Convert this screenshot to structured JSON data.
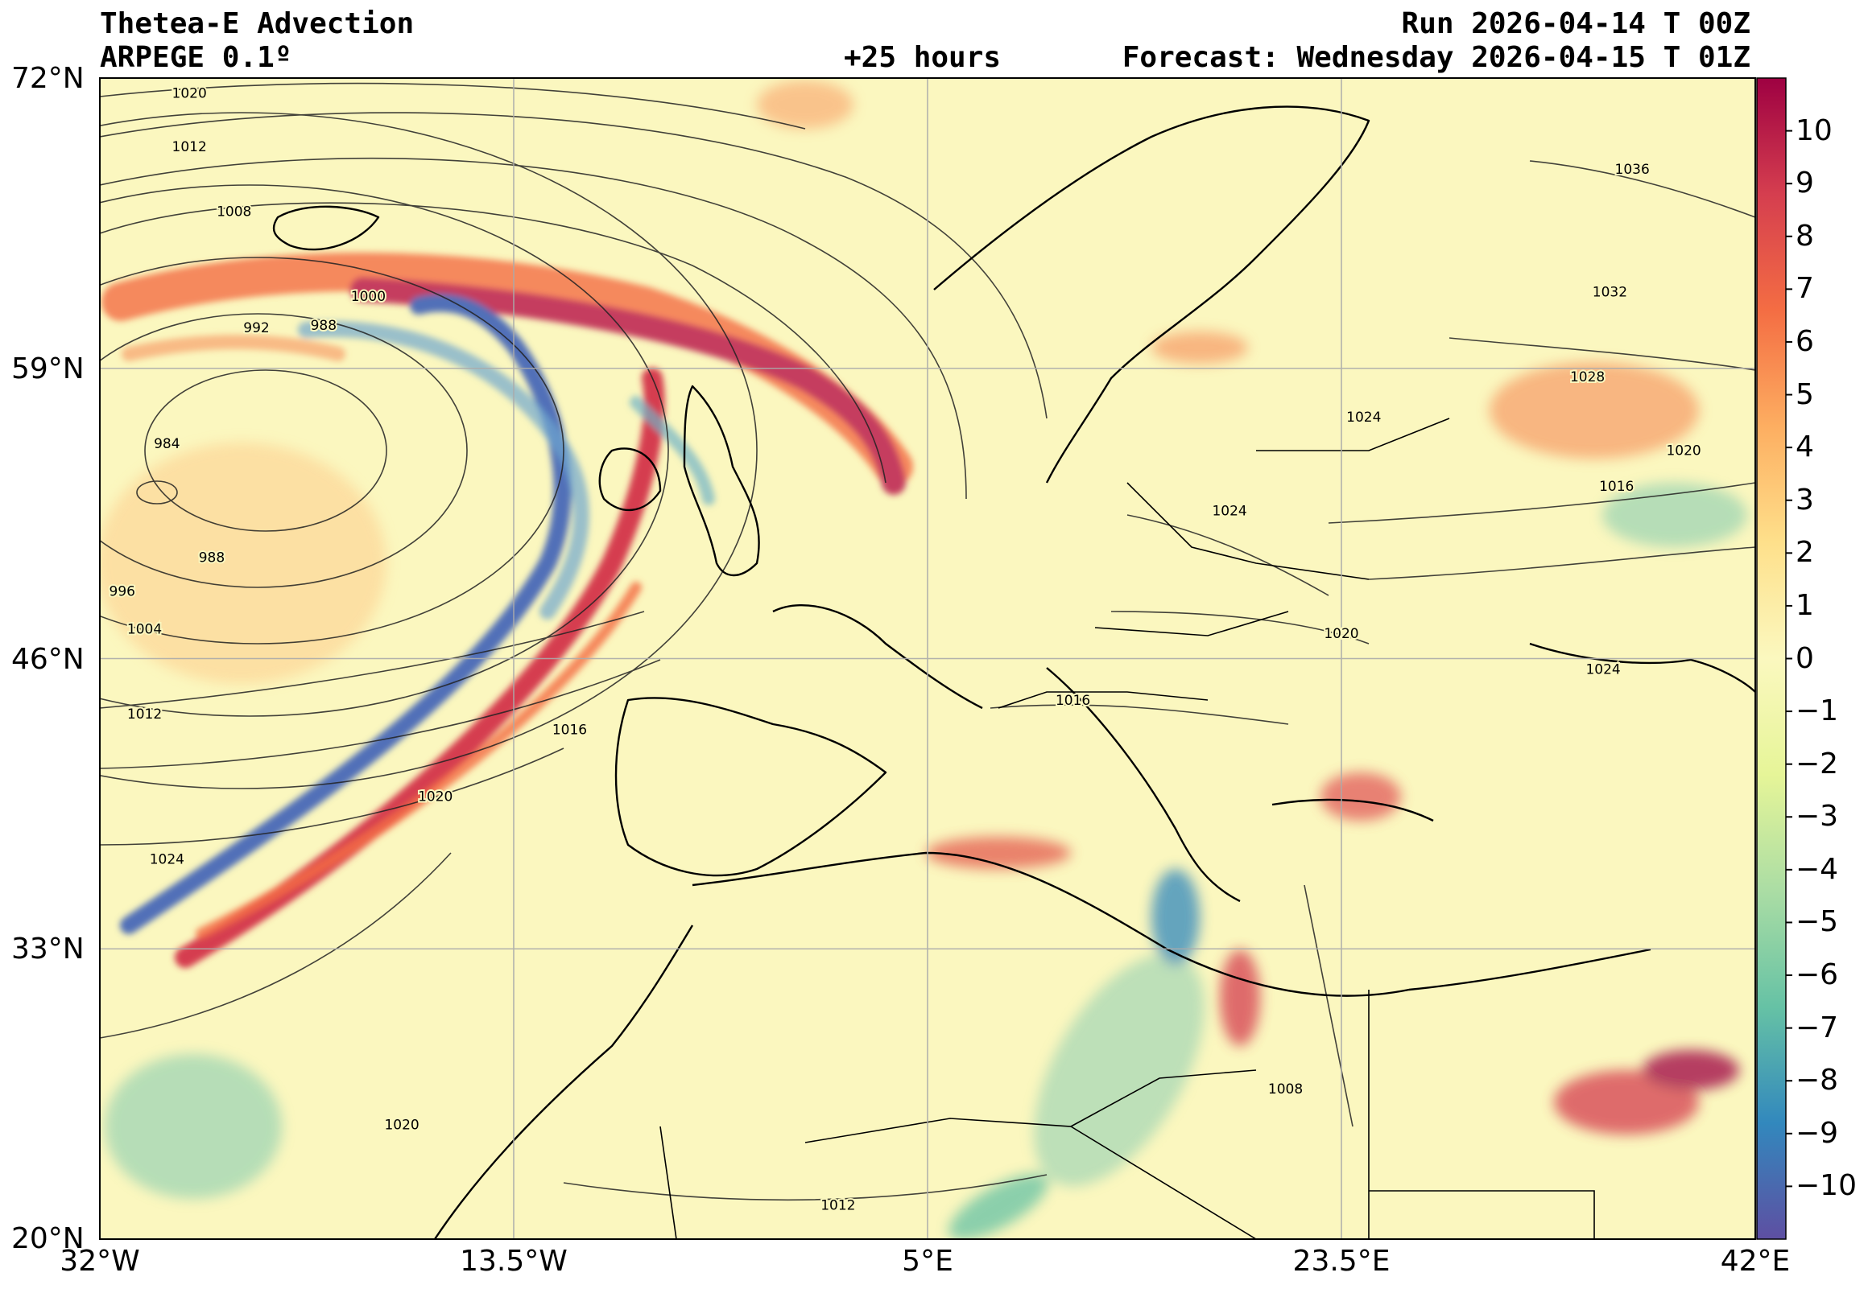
{
  "header": {
    "title": "Thetea-E Advection",
    "model": "ARPEGE 0.1º",
    "run": "Run 2026-04-14 T 00Z",
    "lead": "+25 hours",
    "forecast": "Forecast: Wednesday 2026-04-15 T 01Z"
  },
  "axes": {
    "lat_ticks": [
      "72°N",
      "59°N",
      "46°N",
      "33°N",
      "20°N"
    ],
    "lon_ticks": [
      "32°W",
      "13.5°W",
      "5°E",
      "23.5°E",
      "42°E"
    ],
    "lat_values": [
      72,
      59,
      46,
      33,
      20
    ],
    "lon_values": [
      -32,
      -13.5,
      5,
      23.5,
      42
    ],
    "extent": {
      "lon_min": -32,
      "lon_max": 42,
      "lat_min": 20,
      "lat_max": 72
    }
  },
  "colorbar": {
    "ticks": [
      "10",
      "9",
      "8",
      "7",
      "6",
      "5",
      "4",
      "3",
      "2",
      "1",
      "0",
      "−1",
      "−2",
      "−3",
      "−4",
      "−5",
      "−6",
      "−7",
      "−8",
      "−9",
      "−10"
    ],
    "tick_values": [
      10,
      9,
      8,
      7,
      6,
      5,
      4,
      3,
      2,
      1,
      0,
      -1,
      -2,
      -3,
      -4,
      -5,
      -6,
      -7,
      -8,
      -9,
      -10
    ],
    "range": [
      -11,
      11
    ],
    "colors": {
      "max": "#9e0142",
      "high": "#d53e4f",
      "mid_high": "#f46d43",
      "warm": "#fdae61",
      "light_warm": "#fee08b",
      "neutral": "#fbf8bf",
      "light_cool": "#e6f598",
      "cool": "#abdda4",
      "mid_low": "#66c2a5",
      "low": "#3288bd",
      "min": "#5e4fa2"
    }
  },
  "isobars": [
    {
      "label": "1020",
      "lon": -28,
      "lat": 71.3
    },
    {
      "label": "1012",
      "lon": -28,
      "lat": 68.9
    },
    {
      "label": "1008",
      "lon": -26,
      "lat": 66.0
    },
    {
      "label": "1000",
      "lon": -20,
      "lat": 62.2
    },
    {
      "label": "992",
      "lon": -25,
      "lat": 60.8
    },
    {
      "label": "988",
      "lon": -22,
      "lat": 60.9
    },
    {
      "label": "984",
      "lon": -29,
      "lat": 55.6
    },
    {
      "label": "988",
      "lon": -27,
      "lat": 50.5
    },
    {
      "label": "996",
      "lon": -31,
      "lat": 49.0
    },
    {
      "label": "1004",
      "lon": -30,
      "lat": 47.3
    },
    {
      "label": "1012",
      "lon": -30,
      "lat": 43.5
    },
    {
      "label": "1016",
      "lon": -11,
      "lat": 42.8
    },
    {
      "label": "1020",
      "lon": -17,
      "lat": 39.8
    },
    {
      "label": "1024",
      "lon": -29,
      "lat": 37.0
    },
    {
      "label": "1020",
      "lon": -18.5,
      "lat": 25.1
    },
    {
      "label": "1012",
      "lon": 1,
      "lat": 21.5
    },
    {
      "label": "1008",
      "lon": 21,
      "lat": 26.7
    },
    {
      "label": "1016",
      "lon": 11.5,
      "lat": 44.1
    },
    {
      "label": "1020",
      "lon": 23.5,
      "lat": 47.1
    },
    {
      "label": "1024",
      "lon": 18.5,
      "lat": 52.6
    },
    {
      "label": "1024",
      "lon": 24.5,
      "lat": 56.8
    },
    {
      "label": "1028",
      "lon": 34.5,
      "lat": 58.6
    },
    {
      "label": "1032",
      "lon": 35.5,
      "lat": 62.4
    },
    {
      "label": "1036",
      "lon": 36.5,
      "lat": 67.9
    },
    {
      "label": "1020",
      "lon": 38.8,
      "lat": 55.3
    },
    {
      "label": "1016",
      "lon": 35.8,
      "lat": 53.7
    },
    {
      "label": "1024",
      "lon": 35.2,
      "lat": 45.5
    }
  ]
}
